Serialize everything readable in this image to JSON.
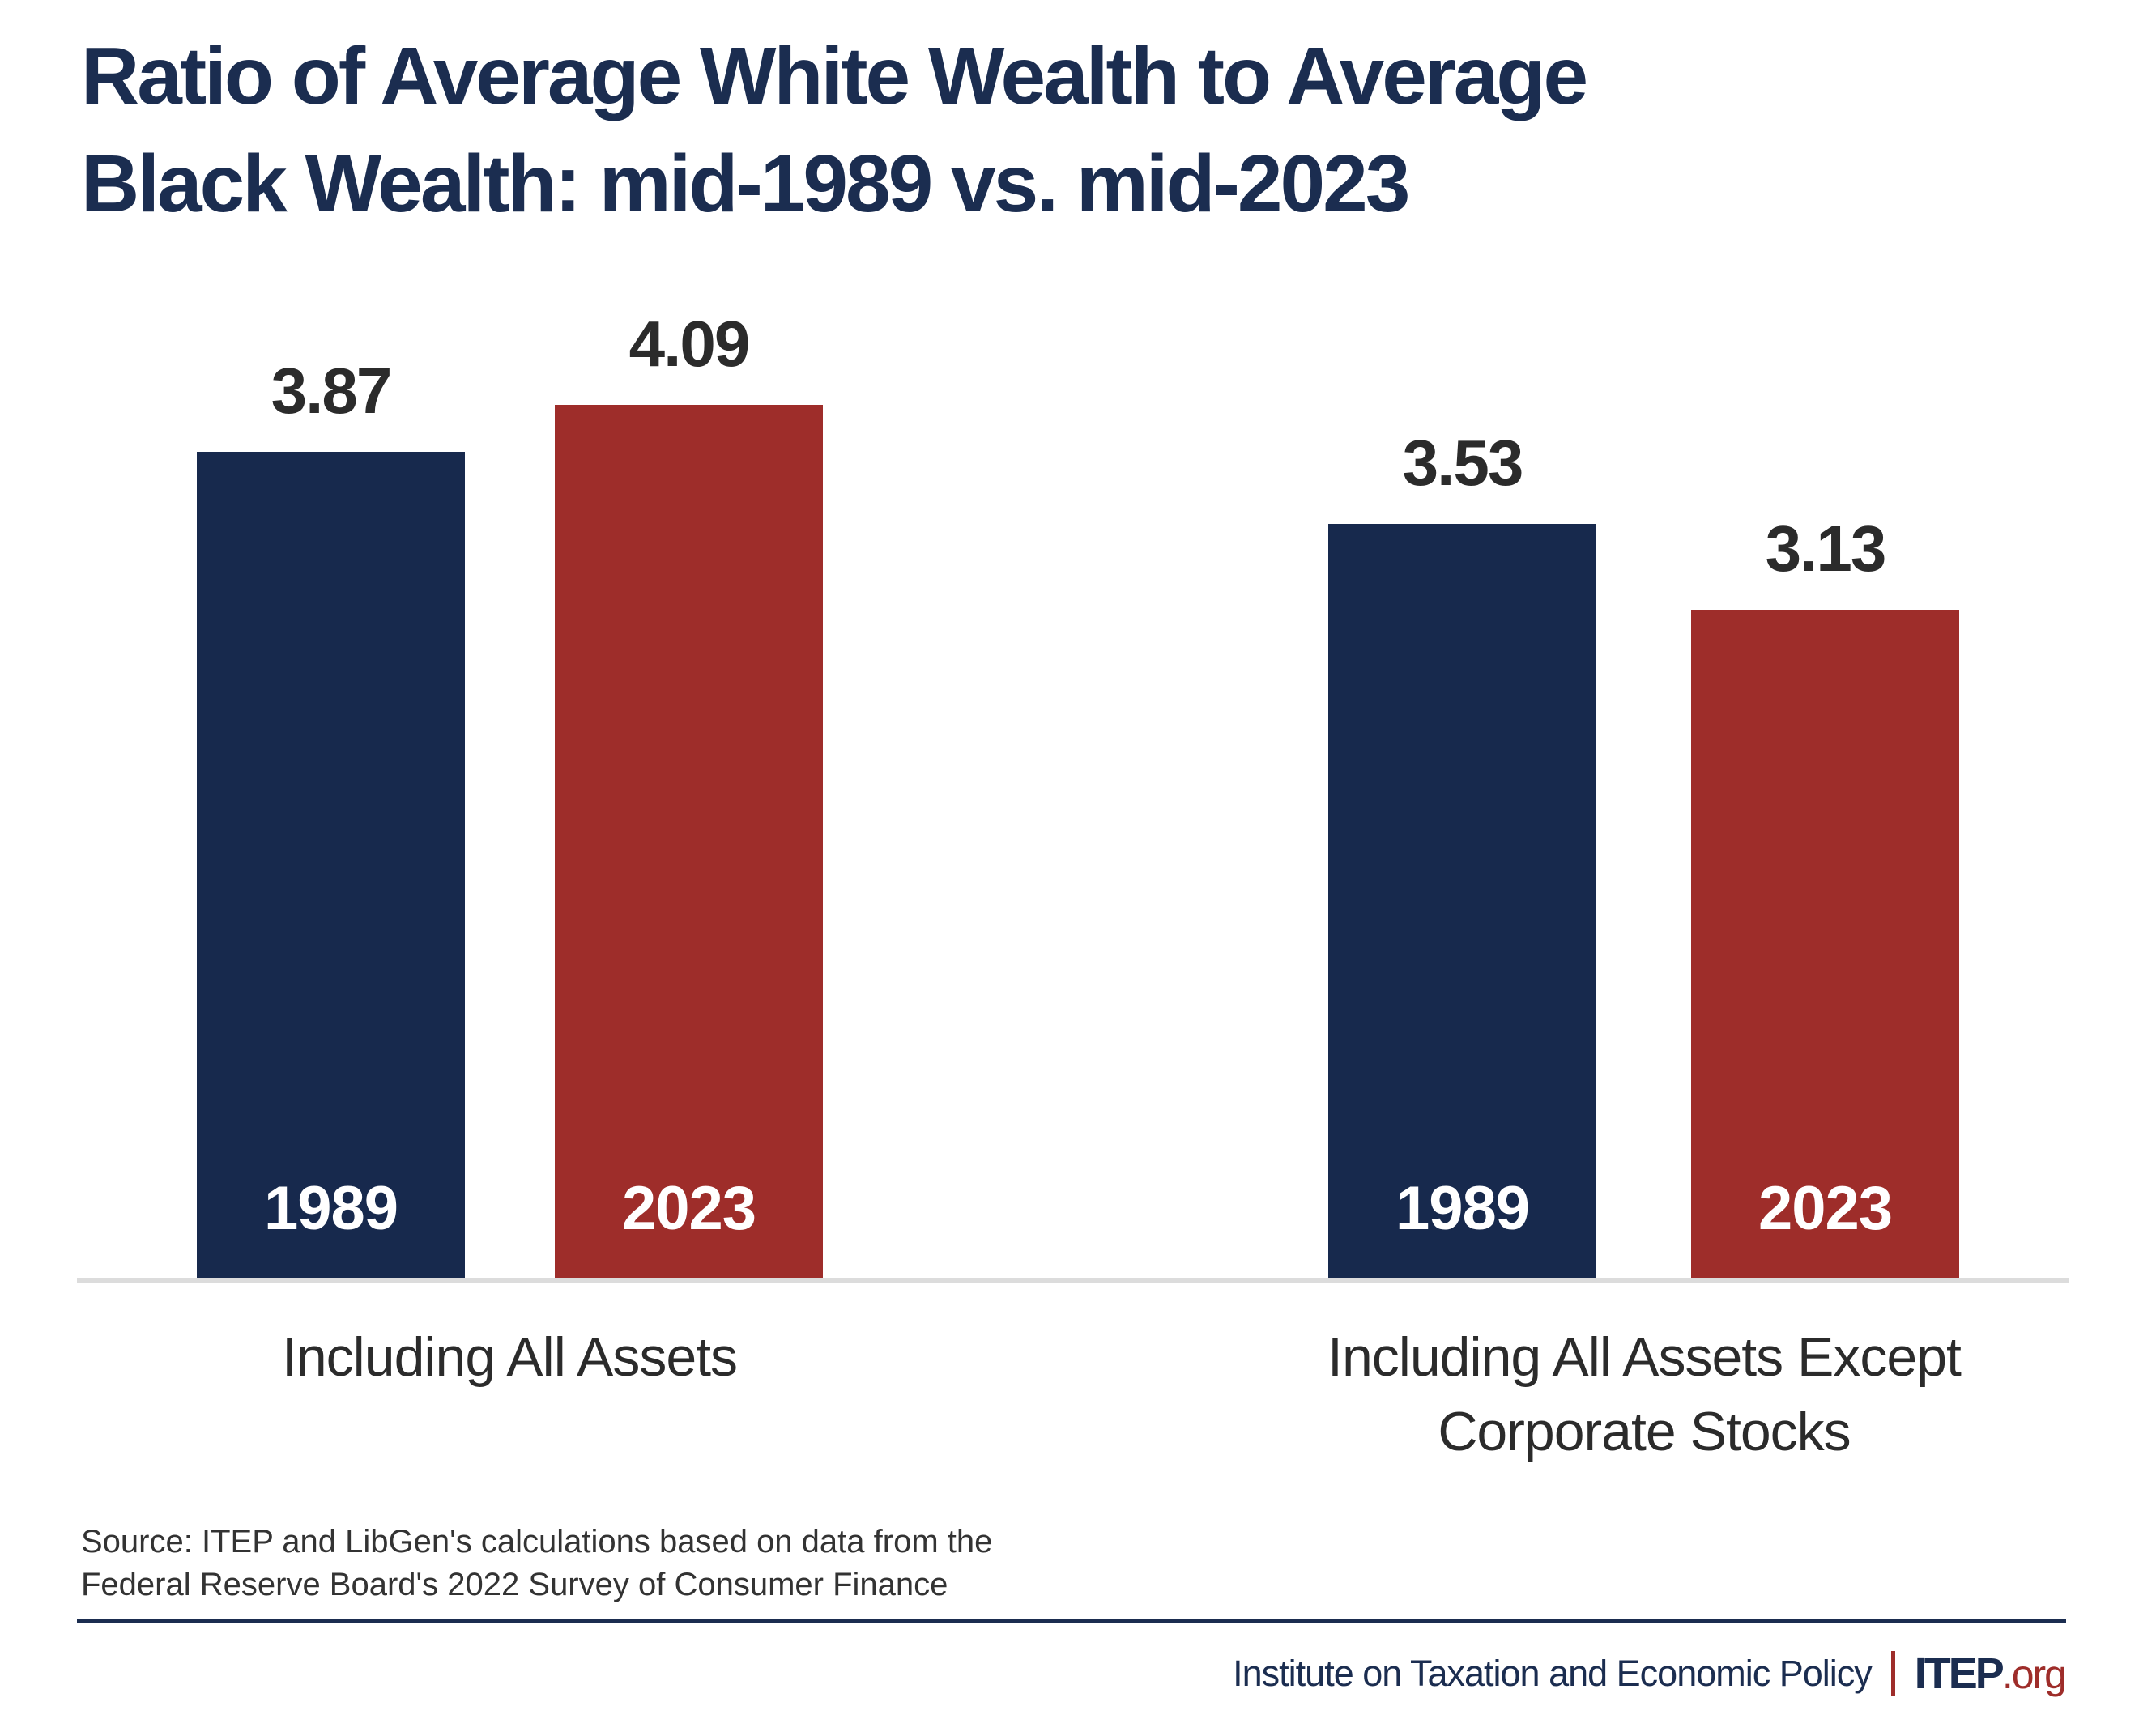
{
  "title": {
    "line1": "Ratio of Average White Wealth to Average",
    "line2": "Black Wealth: mid-1989 vs. mid-2023"
  },
  "chart_data": {
    "type": "bar",
    "title": "Ratio of Average White Wealth to Average Black Wealth: mid-1989 vs. mid-2023",
    "categories": [
      "Including All Assets",
      "Including All Assets Except Corporate Stocks"
    ],
    "category_label_lines": [
      [
        "Including All Assets"
      ],
      [
        "Including All Assets Except",
        "Corporate Stocks"
      ]
    ],
    "series": [
      {
        "name": "1989",
        "color": "#17294d",
        "values": [
          3.87,
          3.53
        ]
      },
      {
        "name": "2023",
        "color": "#9e2d2a",
        "values": [
          4.09,
          3.13
        ]
      }
    ],
    "value_labels": [
      "3.87",
      "4.09",
      "3.53",
      "3.13"
    ],
    "ylim": [
      0,
      4.5
    ],
    "grid": false,
    "legend_position": "in-bar year labels",
    "xlabel": "",
    "ylabel": ""
  },
  "source": {
    "line1": "Source: ITEP and LibGen's calculations based on data from the",
    "line2": "Federal Reserve Board's 2022 Survey of Consumer Finance"
  },
  "footer": {
    "org": "Institute on Taxation and Economic Policy",
    "logo_main": "ITEP",
    "logo_suffix": ".org"
  },
  "colors": {
    "navy-title": "#1b2d50",
    "navy-bar": "#17294d",
    "red": "#9e2d2a",
    "ink": "#2b2b2b",
    "baseline": "#dcdcdc"
  }
}
